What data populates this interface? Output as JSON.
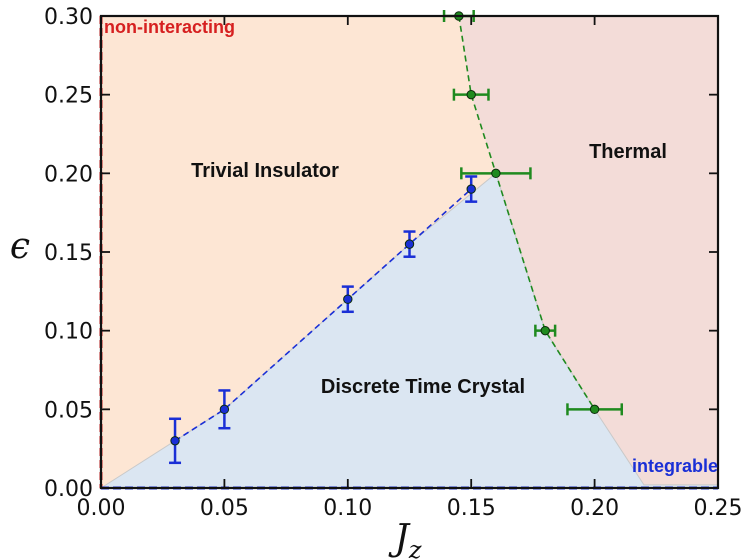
{
  "chart_data": {
    "type": "scatter",
    "title": "",
    "xlabel": "J",
    "xlabel_sub": "z",
    "ylabel": "ϵ",
    "xlim": [
      0,
      0.25
    ],
    "ylim": [
      0,
      0.3
    ],
    "x_ticks": [
      "0.00",
      "0.05",
      "0.10",
      "0.15",
      "0.20",
      "0.25"
    ],
    "y_ticks": [
      "0.00",
      "0.05",
      "0.10",
      "0.15",
      "0.20",
      "0.25",
      "0.30"
    ],
    "grid": false,
    "regions": [
      {
        "label": "Trivial Insulator",
        "color": "#fde6d4"
      },
      {
        "label": "Thermal",
        "color": "#f3dcd8"
      },
      {
        "label": "Discrete Time Crystal",
        "color": "#dbe6f2"
      }
    ],
    "region_boundary_polygon_dtc": [
      {
        "x": 0.0,
        "y": 0.0
      },
      {
        "x": 0.03,
        "y": 0.03
      },
      {
        "x": 0.05,
        "y": 0.05
      },
      {
        "x": 0.1,
        "y": 0.12
      },
      {
        "x": 0.125,
        "y": 0.155
      },
      {
        "x": 0.16,
        "y": 0.2
      },
      {
        "x": 0.18,
        "y": 0.1
      },
      {
        "x": 0.2,
        "y": 0.05
      },
      {
        "x": 0.22,
        "y": 0.002
      },
      {
        "x": 0.25,
        "y": 0.002
      },
      {
        "x": 0.25,
        "y": 0.0
      }
    ],
    "series": [
      {
        "color": "#1a2fd6",
        "points": [
          {
            "x": 0.03,
            "y": 0.03,
            "yerr": 0.014
          },
          {
            "x": 0.05,
            "y": 0.05,
            "yerr": 0.012
          },
          {
            "x": 0.1,
            "y": 0.12,
            "yerr": 0.008
          },
          {
            "x": 0.125,
            "y": 0.155,
            "yerr": 0.008
          },
          {
            "x": 0.15,
            "y": 0.19,
            "yerr": 0.008
          }
        ]
      },
      {
        "color": "#1f8a1f",
        "points": [
          {
            "x": 0.145,
            "y": 0.3,
            "xerr": 0.006
          },
          {
            "x": 0.15,
            "y": 0.25,
            "xerr": 0.007
          },
          {
            "x": 0.16,
            "y": 0.2,
            "xerr": 0.014
          },
          {
            "x": 0.18,
            "y": 0.1,
            "xerr": 0.004
          },
          {
            "x": 0.2,
            "y": 0.05,
            "xerr": 0.011
          }
        ]
      }
    ],
    "edge_lines": [
      {
        "label": "non-interacting",
        "axis": "x",
        "value": 0.0,
        "color": "#d62020"
      },
      {
        "label": "integrable",
        "axis": "y",
        "value": 0.0,
        "color": "#1a2fd6"
      }
    ]
  }
}
